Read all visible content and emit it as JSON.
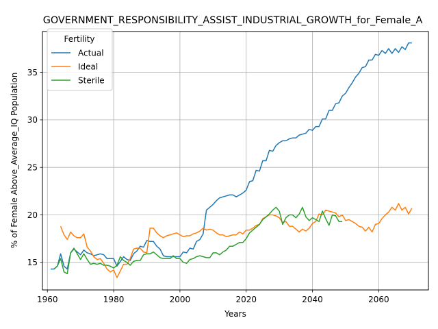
{
  "chart_data": {
    "type": "line",
    "title": "GOVERNMENT_RESPONSIBILITY_ASSIST_INDUSTRIAL_GROWTH_for_Female_A",
    "xlabel": "Years",
    "ylabel": "% of Female Above_Average_IQ Population",
    "xlim": [
      1958.5,
      2075
    ],
    "ylim": [
      12.1,
      39.3
    ],
    "xticks": [
      1960,
      1980,
      2000,
      2020,
      2040,
      2060
    ],
    "yticks": [
      15,
      20,
      25,
      30,
      35
    ],
    "grid": true,
    "legend": {
      "title": "Fertility",
      "placement": "top-left"
    },
    "series": [
      {
        "name": "Actual",
        "color": "#1f77b4",
        "x": [
          1961,
          1962,
          1963,
          1964,
          1965,
          1966,
          1967,
          1968,
          1969,
          1970,
          1971,
          1972,
          1973,
          1974,
          1975,
          1976,
          1977,
          1978,
          1979,
          1980,
          1981,
          1982,
          1983,
          1984,
          1985,
          1986,
          1987,
          1988,
          1989,
          1990,
          1991,
          1992,
          1993,
          1994,
          1995,
          1996,
          1997,
          1998,
          1999,
          2000,
          2001,
          2002,
          2003,
          2004,
          2005,
          2006,
          2007,
          2008,
          2009,
          2010,
          2011,
          2012,
          2013,
          2014,
          2015,
          2016,
          2017,
          2018,
          2019,
          2020,
          2021,
          2022,
          2023,
          2024,
          2025,
          2026,
          2027,
          2028,
          2029,
          2030,
          2031,
          2032,
          2033,
          2034,
          2035,
          2036,
          2037,
          2038,
          2039,
          2040,
          2041,
          2042,
          2043,
          2044,
          2045,
          2046,
          2047,
          2048,
          2049,
          2050,
          2051,
          2052,
          2053,
          2054,
          2055,
          2056,
          2057,
          2058,
          2059,
          2060,
          2061,
          2062,
          2063,
          2064,
          2065,
          2066,
          2067,
          2068,
          2069,
          2070
        ],
        "values": [
          14.3,
          14.3,
          14.6,
          15.9,
          14.6,
          14.3,
          16.0,
          16.4,
          16.1,
          15.8,
          16.3,
          16.0,
          15.9,
          15.7,
          15.8,
          15.9,
          15.8,
          15.4,
          15.4,
          15.4,
          14.6,
          15.1,
          15.6,
          15.3,
          15.2,
          15.9,
          16.2,
          16.7,
          16.6,
          17.3,
          17.2,
          17.2,
          16.7,
          16.4,
          15.7,
          15.6,
          15.6,
          15.6,
          15.6,
          15.6,
          16.1,
          16.0,
          16.5,
          16.4,
          17.2,
          17.4,
          18.0,
          20.5,
          20.8,
          21.1,
          21.5,
          21.8,
          21.9,
          22.0,
          22.1,
          22.1,
          21.9,
          22.1,
          22.3,
          22.6,
          23.5,
          23.6,
          24.7,
          24.6,
          25.7,
          25.7,
          26.8,
          26.7,
          27.3,
          27.6,
          27.8,
          27.8,
          28.0,
          28.1,
          28.1,
          28.4,
          28.5,
          28.6,
          29.0,
          28.9,
          29.3,
          29.3,
          30.1,
          30.1,
          31.0,
          31.0,
          31.7,
          31.8,
          32.5,
          32.8,
          33.4,
          33.9,
          34.5,
          34.9,
          35.5,
          35.6,
          36.3,
          36.3,
          36.9,
          36.8,
          37.3,
          37.0,
          37.5,
          37.0,
          37.5,
          37.1,
          37.7,
          37.4,
          38.1,
          38.1
        ]
      },
      {
        "name": "Ideal",
        "color": "#ff7f0e",
        "x": [
          1964,
          1965,
          1966,
          1967,
          1968,
          1969,
          1970,
          1971,
          1972,
          1973,
          1974,
          1975,
          1976,
          1977,
          1978,
          1979,
          1980,
          1981,
          1982,
          1983,
          1984,
          1985,
          1986,
          1987,
          1988,
          1989,
          1990,
          1991,
          1992,
          1993,
          1994,
          1995,
          1996,
          1997,
          1998,
          1999,
          2000,
          2001,
          2002,
          2003,
          2004,
          2005,
          2006,
          2007,
          2008,
          2009,
          2010,
          2011,
          2012,
          2013,
          2014,
          2015,
          2016,
          2017,
          2018,
          2019,
          2020,
          2021,
          2022,
          2023,
          2024,
          2025,
          2026,
          2027,
          2028,
          2029,
          2030,
          2031,
          2032,
          2033,
          2034,
          2035,
          2036,
          2037,
          2038,
          2039,
          2040,
          2041,
          2042,
          2043,
          2044,
          2045,
          2046,
          2047,
          2048,
          2049,
          2050,
          2051,
          2052,
          2053,
          2054,
          2055,
          2056,
          2057,
          2058,
          2059,
          2060,
          2061,
          2062,
          2063,
          2064,
          2065,
          2066,
          2067,
          2068,
          2069,
          2070
        ],
        "values": [
          18.8,
          17.9,
          17.4,
          18.2,
          17.8,
          17.6,
          17.6,
          18.0,
          16.6,
          16.2,
          15.6,
          15.3,
          15.4,
          14.9,
          14.3,
          14.0,
          14.2,
          13.4,
          14.1,
          14.8,
          14.8,
          15.4,
          16.4,
          16.5,
          16.5,
          16.1,
          16.0,
          18.6,
          18.6,
          18.1,
          17.8,
          17.6,
          17.8,
          17.9,
          18.0,
          18.1,
          17.9,
          17.7,
          17.8,
          17.8,
          18.0,
          18.1,
          18.3,
          18.6,
          18.4,
          18.5,
          18.4,
          18.1,
          17.9,
          17.9,
          17.7,
          17.8,
          17.9,
          17.9,
          18.2,
          18.0,
          18.4,
          18.4,
          18.6,
          18.9,
          19.0,
          19.6,
          19.8,
          20.0,
          20.0,
          19.9,
          19.7,
          19.2,
          19.3,
          18.8,
          18.8,
          18.5,
          18.2,
          18.5,
          18.3,
          18.6,
          19.1,
          19.3,
          20.1,
          20.0,
          20.5,
          20.4,
          20.3,
          20.2,
          19.8,
          20.0,
          19.4,
          19.5,
          19.3,
          19.1,
          18.8,
          18.7,
          18.3,
          18.7,
          18.2,
          19.0,
          19.1,
          19.6,
          20.0,
          20.3,
          20.8,
          20.5,
          21.2,
          20.5,
          20.8,
          20.1,
          20.7
        ]
      },
      {
        "name": "Sterile",
        "color": "#2ca02c",
        "x": [
          1962,
          1963,
          1964,
          1965,
          1966,
          1967,
          1968,
          1969,
          1970,
          1971,
          1972,
          1973,
          1974,
          1975,
          1976,
          1977,
          1978,
          1979,
          1980,
          1981,
          1982,
          1983,
          1984,
          1985,
          1986,
          1987,
          1988,
          1989,
          1990,
          1991,
          1992,
          1993,
          1994,
          1995,
          1996,
          1997,
          1998,
          1999,
          2000,
          2001,
          2002,
          2003,
          2004,
          2005,
          2006,
          2007,
          2008,
          2009,
          2010,
          2011,
          2012,
          2013,
          2014,
          2015,
          2016,
          2017,
          2018,
          2019,
          2020,
          2021,
          2022,
          2023,
          2024,
          2025,
          2026,
          2027,
          2028,
          2029,
          2030,
          2031,
          2032,
          2033,
          2034,
          2035,
          2036,
          2037,
          2038,
          2039,
          2040,
          2041,
          2042,
          2043,
          2044,
          2045,
          2046,
          2047,
          2048,
          2049
        ],
        "values": [
          14.3,
          14.6,
          15.4,
          14.0,
          13.8,
          16.0,
          16.5,
          15.9,
          15.3,
          15.9,
          15.3,
          14.8,
          14.9,
          14.8,
          14.9,
          14.7,
          14.7,
          14.6,
          14.4,
          14.7,
          15.6,
          15.2,
          15.0,
          14.7,
          15.1,
          15.2,
          15.2,
          15.8,
          15.9,
          15.9,
          16.1,
          15.8,
          15.5,
          15.4,
          15.4,
          15.4,
          15.7,
          15.4,
          15.4,
          15.0,
          14.9,
          15.3,
          15.4,
          15.6,
          15.7,
          15.6,
          15.5,
          15.5,
          16.0,
          16.0,
          15.8,
          16.1,
          16.3,
          16.7,
          16.7,
          16.9,
          17.1,
          17.1,
          17.5,
          18.1,
          18.4,
          18.7,
          19.0,
          19.5,
          19.8,
          20.1,
          20.5,
          20.8,
          20.4,
          19.0,
          19.7,
          20.0,
          20.0,
          19.7,
          20.1,
          20.8,
          19.8,
          19.4,
          19.7,
          19.5,
          19.3,
          20.4,
          19.6,
          18.9,
          20.0,
          19.9,
          19.3,
          19.3
        ]
      }
    ]
  }
}
